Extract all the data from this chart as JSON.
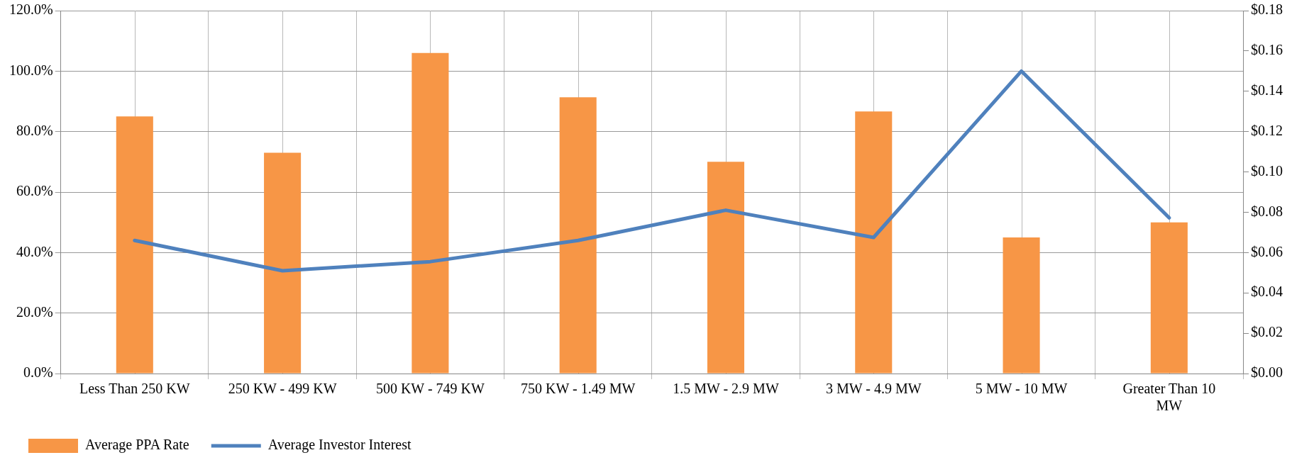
{
  "chart_data": {
    "type": "bar",
    "categories": [
      "Less Than 250 KW",
      "250 KW - 499 KW",
      "500 KW - 749 KW",
      "750 KW - 1.49 MW",
      "1.5 MW - 2.9 MW",
      "3 MW - 4.9 MW",
      "5 MW - 10 MW",
      "Greater Than 10 MW"
    ],
    "series": [
      {
        "name": "Average PPA Rate",
        "axis": "y2",
        "color": "#f79646",
        "values": [
          0.1275,
          0.1095,
          0.159,
          0.137,
          0.105,
          0.13,
          0.0675,
          0.075
        ]
      },
      {
        "name": "Average Investor Interest",
        "type": "line",
        "axis": "y",
        "color": "#4f81bd",
        "values": [
          44,
          34,
          37,
          44,
          54,
          45,
          100,
          51.5
        ]
      }
    ],
    "ylim": [
      0,
      120
    ],
    "yticks": [
      {
        "value": 0,
        "label": "0.0%"
      },
      {
        "value": 20,
        "label": "20.0%"
      },
      {
        "value": 40,
        "label": "40.0%"
      },
      {
        "value": 60,
        "label": "60.0%"
      },
      {
        "value": 80,
        "label": "80.0%"
      },
      {
        "value": 100,
        "label": "100.0%"
      },
      {
        "value": 120,
        "label": "120.0%"
      }
    ],
    "y2lim": [
      0,
      0.18
    ],
    "y2ticks": [
      {
        "value": 0,
        "label": "$0.00"
      },
      {
        "value": 0.02,
        "label": "$0.02"
      },
      {
        "value": 0.04,
        "label": "$0.04"
      },
      {
        "value": 0.06,
        "label": "$0.06"
      },
      {
        "value": 0.08,
        "label": "$0.08"
      },
      {
        "value": 0.1,
        "label": "$0.10"
      },
      {
        "value": 0.12,
        "label": "$0.12"
      },
      {
        "value": 0.14,
        "label": "$0.14"
      },
      {
        "value": 0.16,
        "label": "$0.16"
      },
      {
        "value": 0.18,
        "label": "$0.18"
      }
    ],
    "grid": true,
    "legend": "bottom left",
    "marker": "none",
    "line_style": "solid"
  }
}
